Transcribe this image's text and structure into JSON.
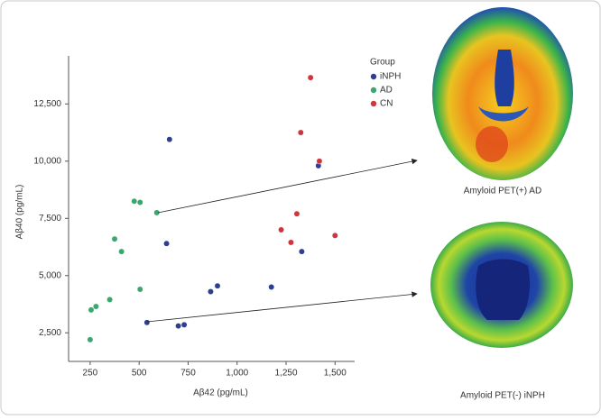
{
  "chart_data": {
    "type": "scatter",
    "xlabel": "Aβ42 (pg/mL)",
    "ylabel": "Aβ40 (pg/mL)",
    "xlim": [
      140,
      1600
    ],
    "ylim": [
      1250,
      14600
    ],
    "xticks": [
      250,
      500,
      750,
      {
        "value": 1000,
        "label": "1,000"
      },
      {
        "value": 1250,
        "label": "1,250"
      },
      {
        "value": 1500,
        "label": "1,500"
      }
    ],
    "yticks": [
      {
        "value": 2500,
        "label": "2,500"
      },
      {
        "value": 5000,
        "label": "5,000"
      },
      {
        "value": 7500,
        "label": "7,500"
      },
      {
        "value": 10000,
        "label": "10,000"
      },
      {
        "value": 12500,
        "label": "12,500"
      }
    ],
    "legend_title": "Group",
    "series": [
      {
        "name": "iNPH",
        "color": "#2e3f8f",
        "x": [
          655,
          640,
          1415,
          1330,
          1175,
          900,
          865,
          540,
          700,
          730
        ],
        "values": [
          10950,
          6400,
          9800,
          6050,
          4500,
          4550,
          4300,
          2950,
          2800,
          2850
        ]
      },
      {
        "name": "AD",
        "color": "#3aa76d",
        "x": [
          475,
          505,
          590,
          375,
          410,
          505,
          350,
          280,
          255,
          250
        ],
        "values": [
          8250,
          8200,
          7750,
          6600,
          6050,
          4400,
          3950,
          3650,
          3500,
          2200
        ]
      },
      {
        "name": "CN",
        "color": "#d0343c",
        "x": [
          1375,
          1325,
          1420,
          1305,
          1225,
          1275,
          1500
        ],
        "values": [
          13650,
          11250,
          10000,
          7700,
          7000,
          6450,
          6750
        ]
      }
    ],
    "images": [
      {
        "caption": "Amyloid PET(+) AD"
      },
      {
        "caption": "Amyloid PET(-) iNPH"
      }
    ]
  }
}
